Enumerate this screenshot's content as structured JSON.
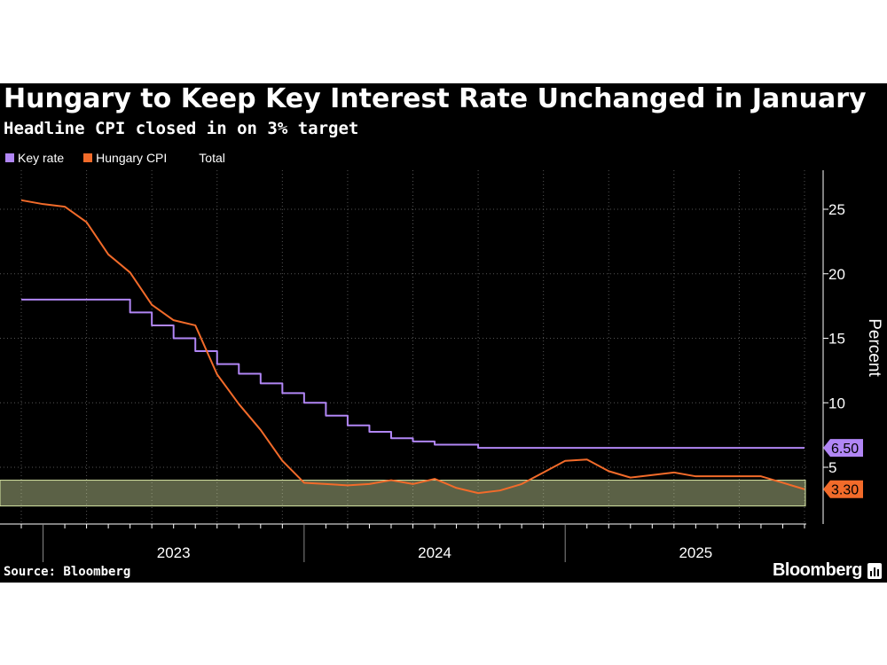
{
  "header": {
    "title": "Hungary to Keep Key Interest Rate Unchanged in January",
    "subtitle": "Headline CPI closed in on 3% target"
  },
  "legend": [
    {
      "label": "Key rate",
      "color": "#b186f5"
    },
    {
      "label": "Hungary CPI",
      "color": "#f26b2a"
    },
    {
      "label": "Total",
      "color": "#000000"
    }
  ],
  "footer": {
    "source": "Source: Bloomberg",
    "brand": "Bloomberg"
  },
  "chart_data": {
    "type": "line",
    "ylabel": "Percent",
    "ylim": [
      0,
      28
    ],
    "yticks": [
      5,
      10,
      15,
      20,
      25
    ],
    "xlim": [
      "2022-12",
      "2025-12"
    ],
    "year_labels": [
      {
        "label": "2023",
        "x": "2023-07"
      },
      {
        "label": "2024",
        "x": "2024-07"
      },
      {
        "label": "2025",
        "x": "2025-07"
      }
    ],
    "target_band": {
      "low": 2,
      "high": 4,
      "color": "#d9e8a6"
    },
    "series": [
      {
        "name": "Key rate",
        "color": "#b186f5",
        "step": true,
        "last_value_label": "6.50",
        "points": [
          [
            "2022-12",
            18
          ],
          [
            "2023-01",
            18
          ],
          [
            "2023-02",
            18
          ],
          [
            "2023-03",
            18
          ],
          [
            "2023-04",
            18
          ],
          [
            "2023-05",
            17
          ],
          [
            "2023-06",
            16
          ],
          [
            "2023-07",
            15
          ],
          [
            "2023-08",
            14
          ],
          [
            "2023-09",
            13
          ],
          [
            "2023-10",
            12.25
          ],
          [
            "2023-11",
            11.5
          ],
          [
            "2023-12",
            10.75
          ],
          [
            "2024-01",
            10
          ],
          [
            "2024-02",
            9
          ],
          [
            "2024-03",
            8.25
          ],
          [
            "2024-04",
            7.75
          ],
          [
            "2024-05",
            7.25
          ],
          [
            "2024-06",
            7
          ],
          [
            "2024-07",
            6.75
          ],
          [
            "2024-08",
            6.75
          ],
          [
            "2024-09",
            6.5
          ],
          [
            "2024-10",
            6.5
          ],
          [
            "2024-11",
            6.5
          ],
          [
            "2024-12",
            6.5
          ],
          [
            "2025-01",
            6.5
          ],
          [
            "2025-02",
            6.5
          ],
          [
            "2025-03",
            6.5
          ],
          [
            "2025-04",
            6.5
          ],
          [
            "2025-05",
            6.5
          ],
          [
            "2025-06",
            6.5
          ],
          [
            "2025-07",
            6.5
          ],
          [
            "2025-08",
            6.5
          ],
          [
            "2025-09",
            6.5
          ],
          [
            "2025-10",
            6.5
          ],
          [
            "2025-11",
            6.5
          ],
          [
            "2025-12",
            6.5
          ]
        ]
      },
      {
        "name": "Hungary CPI",
        "color": "#f26b2a",
        "step": false,
        "last_value_label": "3.30",
        "points": [
          [
            "2022-12",
            25.7
          ],
          [
            "2023-01",
            25.4
          ],
          [
            "2023-02",
            25.2
          ],
          [
            "2023-03",
            24.0
          ],
          [
            "2023-04",
            21.5
          ],
          [
            "2023-05",
            20.1
          ],
          [
            "2023-06",
            17.6
          ],
          [
            "2023-07",
            16.4
          ],
          [
            "2023-08",
            16.0
          ],
          [
            "2023-09",
            12.2
          ],
          [
            "2023-10",
            9.9
          ],
          [
            "2023-11",
            7.9
          ],
          [
            "2023-12",
            5.5
          ],
          [
            "2024-01",
            3.8
          ],
          [
            "2024-02",
            3.7
          ],
          [
            "2024-03",
            3.6
          ],
          [
            "2024-04",
            3.7
          ],
          [
            "2024-05",
            4.0
          ],
          [
            "2024-06",
            3.7
          ],
          [
            "2024-07",
            4.1
          ],
          [
            "2024-08",
            3.4
          ],
          [
            "2024-09",
            3.0
          ],
          [
            "2024-10",
            3.2
          ],
          [
            "2024-11",
            3.7
          ],
          [
            "2024-12",
            4.6
          ],
          [
            "2025-01",
            5.5
          ],
          [
            "2025-02",
            5.6
          ],
          [
            "2025-03",
            4.7
          ],
          [
            "2025-04",
            4.2
          ],
          [
            "2025-05",
            4.4
          ],
          [
            "2025-06",
            4.6
          ],
          [
            "2025-07",
            4.3
          ],
          [
            "2025-08",
            4.3
          ],
          [
            "2025-09",
            4.3
          ],
          [
            "2025-10",
            4.3
          ],
          [
            "2025-11",
            3.8
          ],
          [
            "2025-12",
            3.3
          ]
        ]
      }
    ]
  }
}
